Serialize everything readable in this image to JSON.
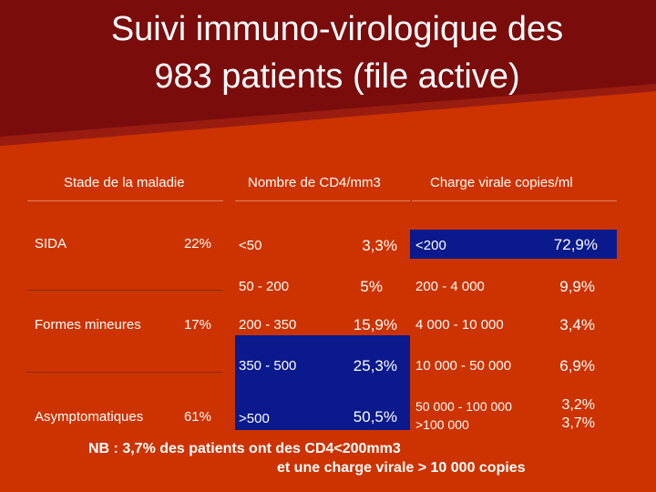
{
  "title": {
    "line1": "Suivi immuno-virologique des",
    "line2": "983 patients  (file active)"
  },
  "headers": {
    "stage": "Stade de la maladie",
    "cd4": "Nombre de CD4/mm3",
    "viral": "Charge virale copies/ml"
  },
  "stages": [
    {
      "label": "SIDA",
      "pct": "22%"
    },
    {
      "label": "Formes mineures",
      "pct": "17%"
    },
    {
      "label": "Asymptomatiques",
      "pct": "61%"
    }
  ],
  "cd4": [
    {
      "range": "<50",
      "pct": "3,3%"
    },
    {
      "range": "50 - 200",
      "pct": "5%"
    },
    {
      "range": "200 - 350",
      "pct": "15,9%"
    },
    {
      "range": "350 - 500",
      "pct": "25,3%"
    },
    {
      "range": ">500",
      "pct": "50,5%"
    }
  ],
  "viral": [
    {
      "range": "<200",
      "pct": "72,9%"
    },
    {
      "range": "200 - 4 000",
      "pct": "9,9%"
    },
    {
      "range": "4 000 - 10 000",
      "pct": "3,4%"
    },
    {
      "range": "10 000 - 50 000",
      "pct": "6,9%"
    },
    {
      "range": "50 000 - 100 000",
      "pct": "3,2%"
    },
    {
      "range": ">100 000",
      "pct": "3,7%"
    }
  ],
  "note": {
    "line1": "NB : 3,7% des patients ont des CD4<200mm3",
    "line2": "et une charge virale > 10 000 copies"
  },
  "colors": {
    "background": "#cc3300",
    "corner": "#7a0c0c",
    "highlight": "#0a1a8c"
  }
}
